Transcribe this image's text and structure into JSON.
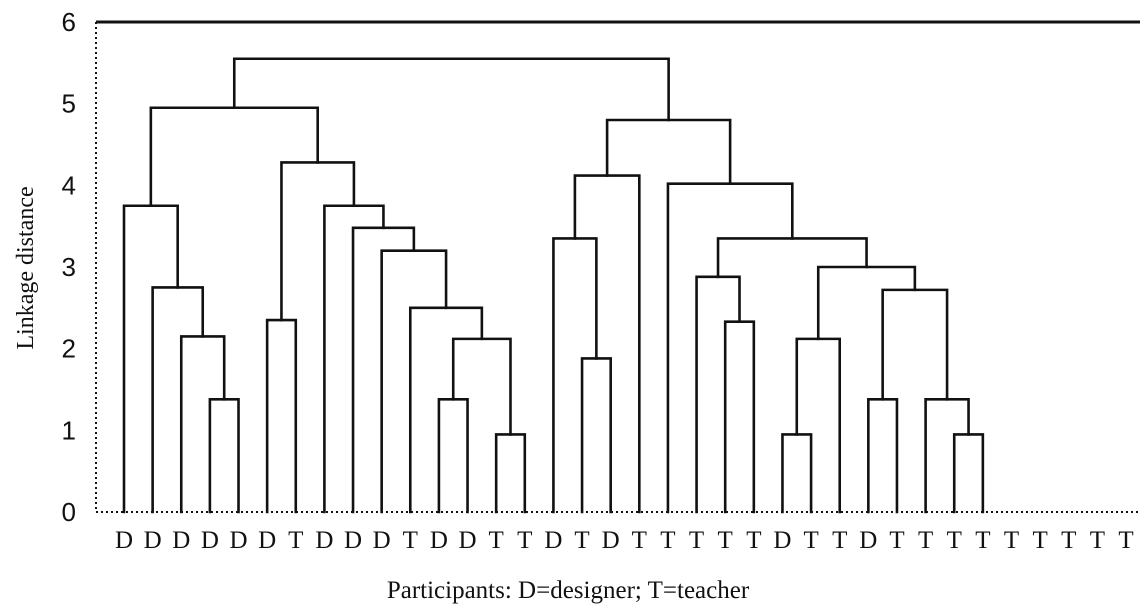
{
  "chart_data": {
    "type": "dendrogram",
    "title": "",
    "xlabel": "Participants: D=designer; T=teacher",
    "ylabel": "Linkage distance",
    "ylim": [
      0,
      6
    ],
    "yticks": [
      "0",
      "1",
      "2",
      "3",
      "4",
      "5",
      "6"
    ],
    "leaves": [
      "D",
      "D",
      "D",
      "D",
      "D",
      "D",
      "T",
      "D",
      "D",
      "D",
      "T",
      "D",
      "D",
      "T",
      "T",
      "D",
      "T",
      "D",
      "T",
      "T",
      "T",
      "T",
      "T",
      "D",
      "T",
      "T",
      "D",
      "T",
      "T",
      "T",
      "T",
      "T",
      "T",
      "T",
      "T",
      "T"
    ],
    "merges": [
      {
        "left": "leaf:3",
        "right": "leaf:4",
        "height": 1.38
      },
      {
        "left": "leaf:2",
        "right": "m0",
        "height": 2.15
      },
      {
        "left": "leaf:1",
        "right": "m1",
        "height": 2.75
      },
      {
        "left": "leaf:0",
        "right": "m2",
        "height": 3.75
      },
      {
        "left": "leaf:5",
        "right": "leaf:6",
        "height": 2.35
      },
      {
        "left": "leaf:11",
        "right": "leaf:12",
        "height": 1.38
      },
      {
        "left": "leaf:13",
        "right": "leaf:14",
        "height": 0.95
      },
      {
        "left": "m5",
        "right": "m6",
        "height": 2.12
      },
      {
        "left": "leaf:10",
        "right": "m7",
        "height": 2.5
      },
      {
        "left": "leaf:9",
        "right": "m8",
        "height": 3.2
      },
      {
        "left": "leaf:8",
        "right": "m9",
        "height": 3.48
      },
      {
        "left": "leaf:7",
        "right": "m10",
        "height": 3.75
      },
      {
        "left": "m4",
        "right": "m11",
        "height": 4.28
      },
      {
        "left": "m3",
        "right": "m12",
        "height": 4.95
      },
      {
        "left": "leaf:16",
        "right": "leaf:17",
        "height": 1.88
      },
      {
        "left": "leaf:15",
        "right": "m14",
        "height": 3.35
      },
      {
        "left": "m15",
        "right": "leaf:18",
        "height": 4.12
      },
      {
        "left": "leaf:21",
        "right": "leaf:22",
        "height": 2.33
      },
      {
        "left": "leaf:20",
        "right": "m17",
        "height": 2.88
      },
      {
        "left": "leaf:23",
        "right": "leaf:24",
        "height": 0.95
      },
      {
        "left": "m19",
        "right": "leaf:25",
        "height": 2.12
      },
      {
        "left": "leaf:26",
        "right": "leaf:27",
        "height": 1.38
      },
      {
        "left": "leaf:29",
        "right": "leaf:30",
        "height": 0.95
      },
      {
        "left": "leaf:28",
        "right": "m22",
        "height": 1.38
      },
      {
        "left": "m21",
        "right": "m23",
        "height": 2.72
      },
      {
        "left": "m20",
        "right": "m24",
        "height": 3.0
      },
      {
        "left": "m18",
        "right": "m25",
        "height": 3.35
      },
      {
        "left": "leaf:19",
        "right": "m26",
        "height": 4.02
      },
      {
        "left": "m16",
        "right": "m27",
        "height": 4.8
      },
      {
        "left": "m13",
        "right": "m28",
        "height": 5.55
      }
    ],
    "grid": false,
    "legend": "none"
  }
}
